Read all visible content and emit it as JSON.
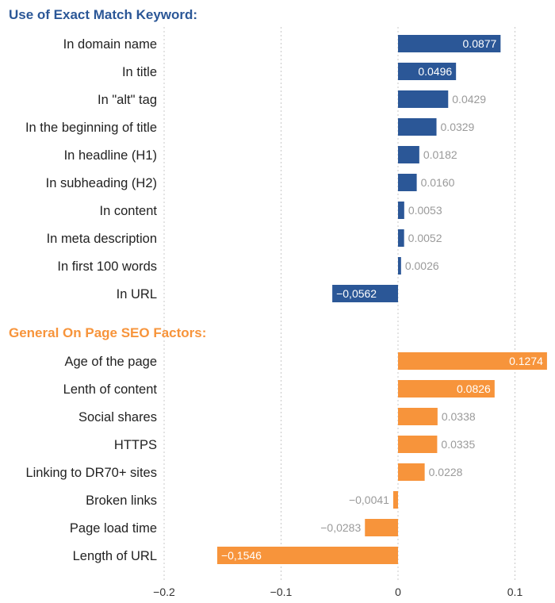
{
  "colors": {
    "blue": "#2B5797",
    "orange": "#F7943B",
    "value_text": "#9a9a9a",
    "inner_text": "#ffffff"
  },
  "chart_data": {
    "type": "bar",
    "orientation": "horizontal",
    "xlim": [
      -0.2,
      0.1274
    ],
    "ticks": [
      -0.2,
      -0.1,
      0,
      0.1
    ],
    "tick_labels": [
      "−0.2",
      "−0.1",
      "0",
      "0.1"
    ],
    "grid": true,
    "groups": [
      {
        "title": "Use of Exact Match Keyword:",
        "color": "#2B5797",
        "categories": [
          "In domain name",
          "In title",
          "In \"alt\" tag",
          "In the beginning of title",
          "In headline (H1)",
          "In subheading (H2)",
          "In content",
          "In meta description",
          "In first 100 words",
          "In URL"
        ],
        "values": [
          0.0877,
          0.0496,
          0.0429,
          0.0329,
          0.0182,
          0.016,
          0.0053,
          0.0052,
          0.0026,
          -0.0562
        ],
        "value_labels": [
          "0.0877",
          "0.0496",
          "0.0429",
          "0.0329",
          "0.0182",
          "0.0160",
          "0.0053",
          "0.0052",
          "0.0026",
          "−0,0562"
        ]
      },
      {
        "title": "General On Page SEO Factors:",
        "color": "#F7943B",
        "categories": [
          "Age of the page",
          "Lenth of content",
          "Social shares",
          "HTTPS",
          "Linking to DR70+ sites",
          "Broken links",
          "Page load time",
          "Length of URL"
        ],
        "values": [
          0.1274,
          0.0826,
          0.0338,
          0.0335,
          0.0228,
          -0.0041,
          -0.0283,
          -0.1546
        ],
        "value_labels": [
          "0.1274",
          "0.0826",
          "0.0338",
          "0.0335",
          "0.0228",
          "−0,0041",
          "−0,0283",
          "−0,1546"
        ]
      }
    ]
  }
}
